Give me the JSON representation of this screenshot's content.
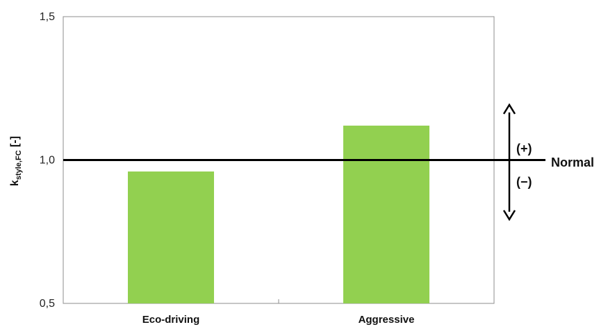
{
  "chart_data": {
    "type": "bar",
    "categories": [
      "Eco-driving",
      "Aggressive"
    ],
    "values": [
      0.96,
      1.12
    ],
    "ylim": [
      0.5,
      1.5
    ],
    "yticks": [
      0.5,
      1.0,
      1.5
    ],
    "ytick_labels": [
      "0,5",
      "1,0",
      "1,5"
    ],
    "ylabel_main": "k",
    "ylabel_sub": "style,FC",
    "ylabel_unit": " [-]",
    "xlabel": "",
    "title": "",
    "grid": false,
    "bar_color": "#92d050",
    "reference_line": {
      "value": 1.0,
      "label": "Normal",
      "color": "#000000"
    },
    "annotations": {
      "plus": "(+)",
      "minus": "(−)"
    }
  }
}
